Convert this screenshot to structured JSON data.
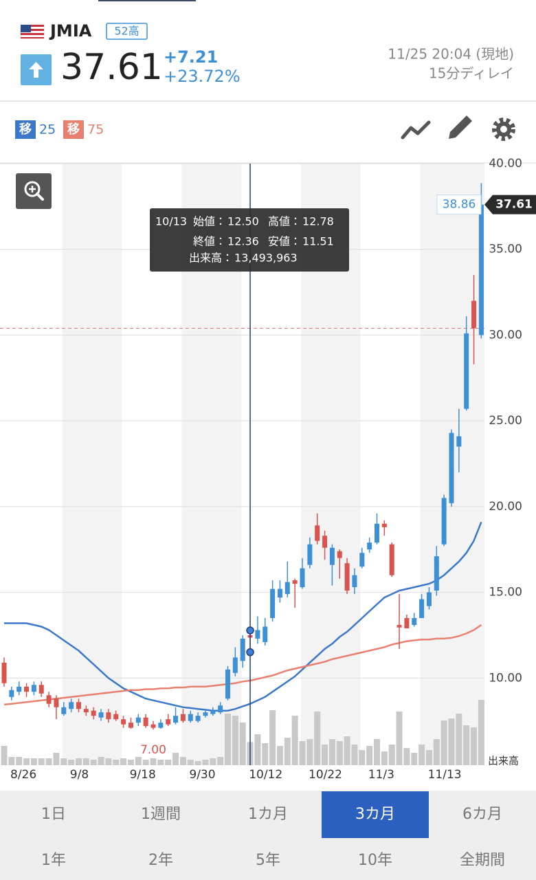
{
  "header": {
    "symbol": "JMIA",
    "badge": "52高",
    "price": 37.61,
    "change": {
      "value": 7.21,
      "label": "+7.21"
    },
    "change_pct": {
      "value": 23.72,
      "label": "+23.72%"
    },
    "time": "11/25 20:04 (現地)",
    "delay": "15分ディレイ"
  },
  "chart_data": {
    "type": "candlestick",
    "categories": [
      "8/26",
      null,
      null,
      null,
      null,
      null,
      null,
      null,
      "9/8",
      null,
      null,
      null,
      null,
      null,
      null,
      null,
      "9/18",
      null,
      null,
      null,
      null,
      null,
      null,
      null,
      "9/30",
      null,
      null,
      null,
      null,
      null,
      null,
      null,
      "10/12",
      null,
      null,
      null,
      null,
      null,
      null,
      null,
      "10/22",
      null,
      null,
      null,
      null,
      null,
      null,
      null,
      "11/3",
      null,
      null,
      null,
      null,
      null,
      null,
      null,
      "11/13",
      null,
      null,
      null,
      null,
      null,
      null,
      null,
      null
    ],
    "open": [
      10.9,
      8.9,
      9.2,
      9.5,
      9.2,
      9.6,
      9.0,
      8.8,
      7.9,
      8.2,
      8.6,
      8.2,
      8.1,
      7.7,
      8.0,
      7.9,
      7.6,
      7.4,
      7.4,
      7.7,
      7.3,
      7.1,
      7.6,
      7.4,
      7.9,
      7.5,
      7.5,
      7.8,
      7.9,
      8.0,
      8.8,
      10.3,
      11.0,
      12.5,
      12.3,
      12.1,
      13.5,
      14.7,
      14.9,
      15.7,
      15.3,
      16.6,
      18.9,
      18.3,
      16.6,
      17.4,
      16.7,
      15.3,
      16.5,
      17.5,
      17.9,
      19.0,
      17.8,
      13.1,
      13.5,
      13.1,
      13.5,
      14.2,
      15.1,
      17.8,
      20.2,
      23.5,
      25.7,
      32.0,
      30.0
    ],
    "high": [
      11.2,
      9.5,
      9.8,
      9.7,
      9.8,
      9.8,
      9.2,
      9.0,
      8.6,
      8.8,
      8.8,
      8.4,
      8.3,
      8.2,
      8.2,
      8.1,
      7.8,
      7.7,
      7.9,
      7.9,
      7.5,
      7.6,
      7.9,
      8.3,
      8.2,
      8.1,
      8.0,
      8.2,
      8.3,
      8.6,
      10.7,
      11.8,
      12.5,
      12.78,
      13.6,
      13.5,
      15.7,
      15.7,
      16.8,
      15.8,
      17.0,
      18.2,
      19.6,
      18.6,
      17.8,
      17.5,
      17.0,
      16.4,
      17.6,
      18.2,
      19.6,
      19.2,
      17.9,
      14.9,
      13.7,
      13.8,
      14.9,
      15.3,
      17.7,
      20.7,
      24.5,
      25.7,
      31.1,
      33.5,
      38.86
    ],
    "low": [
      9.5,
      8.7,
      9.0,
      8.9,
      9.0,
      8.9,
      8.3,
      7.6,
      7.8,
      8.0,
      8.0,
      7.8,
      7.6,
      7.5,
      7.4,
      7.5,
      7.1,
      7.05,
      7.2,
      7.1,
      7.0,
      7.05,
      7.2,
      7.3,
      7.4,
      7.4,
      7.4,
      7.7,
      7.8,
      7.9,
      8.7,
      10.1,
      10.6,
      11.51,
      12.0,
      11.9,
      13.3,
      14.4,
      14.7,
      14.1,
      15.2,
      16.4,
      17.8,
      16.9,
      15.4,
      15.8,
      14.9,
      14.9,
      16.4,
      17.3,
      17.8,
      18.3,
      15.9,
      11.7,
      12.9,
      13.0,
      13.5,
      14.0,
      14.8,
      17.7,
      20.0,
      22.0,
      25.6,
      28.3,
      29.8
    ],
    "close": [
      9.7,
      9.3,
      9.5,
      9.2,
      9.6,
      9.1,
      8.5,
      8.3,
      8.3,
      8.6,
      8.2,
      8.0,
      7.8,
      8.0,
      7.6,
      7.6,
      7.3,
      7.1,
      7.7,
      7.2,
      7.1,
      7.4,
      7.3,
      7.8,
      7.5,
      7.9,
      7.8,
      8.0,
      8.1,
      8.4,
      10.5,
      11.2,
      12.3,
      12.36,
      12.8,
      13.0,
      15.2,
      15.2,
      15.6,
      15.5,
      16.4,
      17.8,
      18.0,
      17.6,
      17.6,
      17.0,
      15.1,
      16.0,
      17.3,
      17.9,
      19.0,
      18.8,
      16.0,
      12.95,
      12.9,
      13.5,
      14.6,
      15.0,
      17.1,
      20.5,
      24.3,
      24.1,
      30.1,
      30.4,
      37.61
    ],
    "volume": [
      11200000,
      4800000,
      4800000,
      4000000,
      4000000,
      4000000,
      4000000,
      7200000,
      4000000,
      3200000,
      4000000,
      4000000,
      3200000,
      4800000,
      4000000,
      3200000,
      4000000,
      3200000,
      4800000,
      3200000,
      4000000,
      3200000,
      3200000,
      7200000,
      4800000,
      3200000,
      2400000,
      3200000,
      4000000,
      4800000,
      30000000,
      28800000,
      24800000,
      13493963,
      18000000,
      12800000,
      32000000,
      11200000,
      16000000,
      28800000,
      14000000,
      15200000,
      31200000,
      12000000,
      15200000,
      14000000,
      16800000,
      12000000,
      8800000,
      11200000,
      15200000,
      8000000,
      12000000,
      31200000,
      10000000,
      7200000,
      12000000,
      8800000,
      15200000,
      26000000,
      27200000,
      30000000,
      23200000,
      22000000,
      38000000
    ],
    "up_color": "#3d8fd6",
    "down_color": "#d9534f",
    "volume_color": "#c9c9c9",
    "moving_averages": [
      {
        "label": "移",
        "period": 25,
        "color": "#3b78c8",
        "values": [
          13.2,
          13.2,
          13.2,
          13.2,
          13.1,
          13.0,
          12.8,
          12.5,
          12.2,
          11.9,
          11.6,
          11.2,
          10.8,
          10.4,
          10.0,
          9.7,
          9.4,
          9.2,
          9.0,
          8.8,
          8.7,
          8.6,
          8.5,
          8.4,
          8.3,
          8.25,
          8.2,
          8.15,
          8.1,
          8.1,
          8.1,
          8.2,
          8.35,
          8.5,
          8.7,
          8.9,
          9.2,
          9.5,
          9.8,
          10.1,
          10.5,
          10.9,
          11.3,
          11.7,
          12.0,
          12.4,
          12.7,
          13.1,
          13.5,
          13.9,
          14.3,
          14.7,
          14.9,
          15.1,
          15.2,
          15.3,
          15.4,
          15.5,
          15.7,
          16.0,
          16.4,
          16.8,
          17.3,
          18.0,
          19.1
        ]
      },
      {
        "label": "移",
        "period": 75,
        "color": "#e8806f",
        "values": [
          8.45,
          8.5,
          8.55,
          8.6,
          8.65,
          8.7,
          8.75,
          8.8,
          8.85,
          8.9,
          8.95,
          9.0,
          9.05,
          9.1,
          9.15,
          9.2,
          9.25,
          9.3,
          9.3,
          9.35,
          9.35,
          9.4,
          9.4,
          9.45,
          9.45,
          9.5,
          9.5,
          9.5,
          9.55,
          9.6,
          9.65,
          9.7,
          9.8,
          9.85,
          9.95,
          10.05,
          10.15,
          10.3,
          10.45,
          10.55,
          10.65,
          10.75,
          10.85,
          10.95,
          11.1,
          11.2,
          11.3,
          11.4,
          11.5,
          11.6,
          11.7,
          11.8,
          11.95,
          12.05,
          12.15,
          12.2,
          12.25,
          12.25,
          12.3,
          12.3,
          12.35,
          12.45,
          12.6,
          12.8,
          13.1
        ]
      }
    ],
    "ylim": [
      5,
      40
    ],
    "yticks": [
      {
        "value": 40,
        "label": "40.00"
      },
      {
        "value": 35,
        "label": "35.00"
      },
      {
        "value": 30,
        "label": "30.00"
      },
      {
        "value": 25,
        "label": "25.00"
      },
      {
        "value": 20,
        "label": "20.00"
      },
      {
        "value": 15,
        "label": "15.00"
      },
      {
        "value": 10,
        "label": "10.00"
      }
    ],
    "volume_ylim": [
      0,
      40000000
    ],
    "grid": true,
    "volume_label": "出来高",
    "low_label": {
      "value": 7,
      "label": "7.00"
    },
    "tooltip": {
      "date": "10/13",
      "items": [
        {
          "name": "始値：",
          "value": 12.5,
          "label": "12.50"
        },
        {
          "name": "高値：",
          "value": 12.78,
          "label": "12.78"
        },
        {
          "name": "終値：",
          "value": 12.36,
          "label": "12.36"
        },
        {
          "name": "安値：",
          "value": 11.51,
          "label": "11.51"
        },
        {
          "name": "出来高：",
          "value": 13493963,
          "label": "13,493,963"
        }
      ]
    }
  },
  "tabs": {
    "rows": [
      [
        "1日",
        "1週間",
        "1カ月",
        "3カ月",
        "6カ月"
      ],
      [
        "1年",
        "2年",
        "5年",
        "10年",
        "全期間"
      ]
    ],
    "selected": "3カ月"
  }
}
